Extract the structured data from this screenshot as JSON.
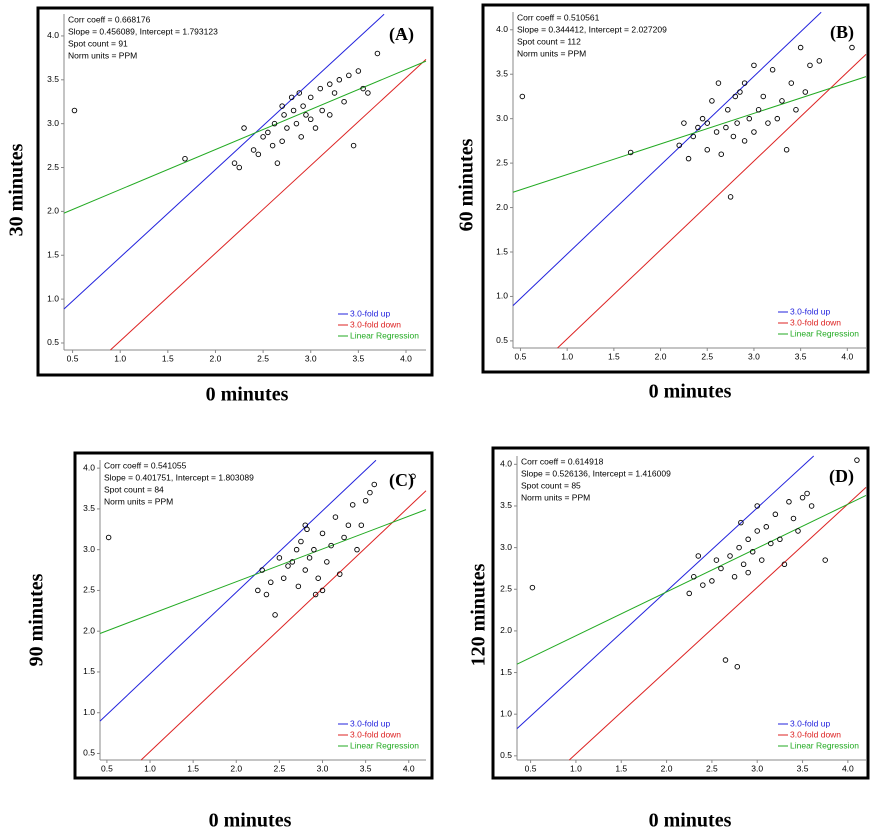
{
  "chart_data": [
    {
      "type": "scatter",
      "label": "(A)",
      "xlabel": "0 minutes",
      "ylabel": "30 minutes",
      "annotations": [
        "Corr coeff = 0.668176",
        "Slope = 0.456089, Intercept = 1.793123",
        "Spot count = 91",
        "Norm units = PPM"
      ],
      "xlim": [
        0.41,
        4.21
      ],
      "ylim": [
        0.42,
        4.25
      ],
      "xticks": [
        0.5,
        {
          "value": 1,
          "label": "1.0"
        },
        1.5,
        {
          "value": 2,
          "label": "2.0"
        },
        2.5,
        {
          "value": 3,
          "label": "3.0"
        },
        3.5,
        {
          "value": 4,
          "label": "4.0"
        }
      ],
      "yticks": [
        0.5,
        {
          "value": 1,
          "label": "1.0"
        },
        1.5,
        {
          "value": 2,
          "label": "2.0"
        },
        2.5,
        {
          "value": 3,
          "label": "3.0"
        },
        3.5,
        {
          "value": 4,
          "label": "4.0"
        }
      ],
      "color": "#000000",
      "x": [
        0.52,
        1.68,
        2.2,
        2.25,
        2.3,
        2.4,
        2.45,
        2.5,
        2.55,
        2.6,
        2.62,
        2.65,
        2.7,
        2.72,
        2.75,
        2.8,
        2.82,
        2.85,
        2.88,
        2.9,
        2.92,
        2.95,
        3.0,
        3.0,
        3.05,
        3.1,
        3.12,
        3.2,
        3.25,
        3.3,
        3.35,
        3.4,
        3.45,
        3.5,
        3.55,
        3.6,
        3.7,
        3.95,
        3.2,
        2.7
      ],
      "values": [
        3.15,
        2.6,
        2.55,
        2.5,
        2.95,
        2.7,
        2.65,
        2.85,
        2.9,
        2.75,
        3.0,
        2.55,
        2.8,
        3.1,
        2.95,
        3.3,
        3.15,
        3.0,
        3.35,
        2.85,
        3.2,
        3.1,
        3.05,
        3.3,
        2.95,
        3.4,
        3.15,
        3.1,
        3.35,
        3.5,
        3.25,
        3.55,
        2.75,
        3.6,
        3.4,
        3.35,
        3.8,
        4.05,
        3.45,
        3.2
      ],
      "series": [
        {
          "name": "3.0-fold up",
          "color": "#2222dd",
          "x": [
            0.41,
            3.77
          ],
          "values": [
            0.887,
            4.247
          ]
        },
        {
          "name": "3.0-fold down",
          "color": "#dd2222",
          "x": [
            0.897,
            4.21
          ],
          "values": [
            0.42,
            3.733
          ]
        },
        {
          "name": "Linear Regression",
          "color": "#22aa22",
          "x": [
            0.41,
            4.21
          ],
          "values": [
            1.98,
            3.713
          ]
        }
      ]
    },
    {
      "type": "scatter",
      "label": "(B)",
      "xlabel": "0 minutes",
      "ylabel": "60 minutes",
      "annotations": [
        "Corr coeff = 0.510561",
        "Slope = 0.344412, Intercept = 2.027209",
        "Spot count = 112",
        "Norm units = PPM"
      ],
      "xlim": [
        0.42,
        4.2
      ],
      "ylim": [
        0.42,
        4.2
      ],
      "xticks": [
        0.5,
        {
          "value": 1,
          "label": "1.0"
        },
        1.5,
        {
          "value": 2,
          "label": "2.0"
        },
        2.5,
        {
          "value": 3,
          "label": "3.0"
        },
        3.5,
        {
          "value": 4,
          "label": "4.0"
        }
      ],
      "yticks": [
        0.5,
        {
          "value": 1,
          "label": "1.0"
        },
        1.5,
        {
          "value": 2,
          "label": "2.0"
        },
        2.5,
        {
          "value": 3,
          "label": "3.0"
        },
        3.5,
        {
          "value": 4,
          "label": "4.0"
        }
      ],
      "color": "#000000",
      "x": [
        0.52,
        1.68,
        2.2,
        2.25,
        2.3,
        2.35,
        2.4,
        2.45,
        2.5,
        2.55,
        2.6,
        2.62,
        2.65,
        2.7,
        2.72,
        2.75,
        2.78,
        2.8,
        2.82,
        2.85,
        2.9,
        2.95,
        3.0,
        3.05,
        3.1,
        3.15,
        3.2,
        3.25,
        3.3,
        3.35,
        3.4,
        3.45,
        3.5,
        3.55,
        3.6,
        3.7,
        4.05,
        2.5,
        2.9,
        3.0
      ],
      "values": [
        3.25,
        2.62,
        2.7,
        2.95,
        2.55,
        2.8,
        2.9,
        3.0,
        2.65,
        3.2,
        2.85,
        3.4,
        2.6,
        2.9,
        3.1,
        2.12,
        2.8,
        3.25,
        2.95,
        3.3,
        2.75,
        3.0,
        2.85,
        3.1,
        3.25,
        2.95,
        3.55,
        3.0,
        3.2,
        2.65,
        3.4,
        3.1,
        3.8,
        3.3,
        3.6,
        3.65,
        3.8,
        2.95,
        3.4,
        3.6
      ],
      "series": [
        {
          "name": "3.0-fold up",
          "color": "#2222dd",
          "x": [
            0.42,
            3.72
          ],
          "values": [
            0.897,
            4.197
          ]
        },
        {
          "name": "3.0-fold down",
          "color": "#dd2222",
          "x": [
            0.897,
            4.2
          ],
          "values": [
            0.42,
            3.723
          ]
        },
        {
          "name": "Linear Regression",
          "color": "#22aa22",
          "x": [
            0.42,
            4.2
          ],
          "values": [
            2.172,
            3.473
          ]
        }
      ]
    },
    {
      "type": "scatter",
      "label": "(C)",
      "xlabel": "0 minutes",
      "ylabel": "90 minutes",
      "annotations": [
        "Corr coeff = 0.541055",
        "Slope = 0.401751, Intercept = 1.803089",
        "Spot count = 84",
        "Norm units = PPM"
      ],
      "xlim": [
        0.42,
        4.2
      ],
      "ylim": [
        0.42,
        4.1
      ],
      "xticks": [
        0.5,
        {
          "value": 1,
          "label": "1.0"
        },
        1.5,
        {
          "value": 2,
          "label": "2.0"
        },
        2.5,
        {
          "value": 3,
          "label": "3.0"
        },
        3.5,
        {
          "value": 4,
          "label": "4.0"
        }
      ],
      "yticks": [
        0.5,
        {
          "value": 1,
          "label": "1.0"
        },
        1.5,
        {
          "value": 2,
          "label": "2.0"
        },
        2.5,
        {
          "value": 3,
          "label": "3.0"
        },
        3.5,
        {
          "value": 4,
          "label": "4.0"
        }
      ],
      "color": "#000000",
      "x": [
        0.52,
        2.25,
        2.3,
        2.35,
        2.4,
        2.45,
        2.5,
        2.55,
        2.6,
        2.65,
        2.7,
        2.72,
        2.75,
        2.8,
        2.82,
        2.85,
        2.9,
        2.92,
        2.95,
        3.0,
        3.05,
        3.1,
        3.15,
        3.2,
        3.25,
        3.3,
        3.35,
        3.4,
        3.45,
        3.5,
        3.55,
        3.6,
        4.05,
        2.8,
        3.0
      ],
      "values": [
        3.15,
        2.5,
        2.75,
        2.45,
        2.6,
        2.2,
        2.9,
        2.65,
        2.8,
        2.85,
        3.0,
        2.55,
        3.1,
        2.75,
        3.25,
        2.9,
        3.0,
        2.45,
        2.65,
        3.2,
        2.85,
        3.05,
        3.4,
        2.7,
        3.15,
        3.3,
        3.55,
        3.0,
        3.3,
        3.6,
        3.7,
        3.8,
        3.9,
        3.3,
        2.5
      ],
      "series": [
        {
          "name": "3.0-fold up",
          "color": "#2222dd",
          "x": [
            0.42,
            3.62
          ],
          "values": [
            0.897,
            4.097
          ]
        },
        {
          "name": "3.0-fold down",
          "color": "#dd2222",
          "x": [
            0.897,
            4.2
          ],
          "values": [
            0.42,
            3.723
          ]
        },
        {
          "name": "Linear Regression",
          "color": "#22aa22",
          "x": [
            0.42,
            4.2
          ],
          "values": [
            1.972,
            3.491
          ]
        }
      ]
    },
    {
      "type": "scatter",
      "label": "(D)",
      "xlabel": "0 minutes",
      "ylabel": "120 minutes",
      "annotations": [
        "Corr coeff = 0.614918",
        "Slope = 0.526136, Intercept = 1.416009",
        "Spot count = 85",
        "Norm units = PPM"
      ],
      "xlim": [
        0.35,
        4.2
      ],
      "ylim": [
        0.45,
        4.1
      ],
      "xticks": [
        0.5,
        {
          "value": 1,
          "label": "1.0"
        },
        1.5,
        {
          "value": 2,
          "label": "2.0"
        },
        2.5,
        {
          "value": 3,
          "label": "3.0"
        },
        3.5,
        {
          "value": 4,
          "label": "4.0"
        }
      ],
      "yticks": [
        0.5,
        {
          "value": 1,
          "label": "1.0"
        },
        1.5,
        {
          "value": 2,
          "label": "2.0"
        },
        2.5,
        {
          "value": 3,
          "label": "3.0"
        },
        3.5,
        {
          "value": 4,
          "label": "4.0"
        }
      ],
      "color": "#000000",
      "x": [
        0.52,
        2.25,
        2.3,
        2.35,
        2.4,
        2.5,
        2.55,
        2.6,
        2.65,
        2.7,
        2.75,
        2.78,
        2.8,
        2.82,
        2.85,
        2.9,
        2.95,
        3.0,
        3.05,
        3.1,
        3.15,
        3.2,
        3.25,
        3.3,
        3.35,
        3.4,
        3.45,
        3.5,
        3.55,
        3.6,
        3.75,
        4.1,
        2.9,
        3.0
      ],
      "values": [
        2.52,
        2.45,
        2.65,
        2.9,
        2.55,
        2.6,
        2.85,
        2.75,
        1.65,
        2.9,
        2.65,
        1.57,
        3.0,
        3.3,
        2.8,
        3.1,
        2.95,
        3.2,
        2.85,
        3.25,
        3.05,
        3.4,
        3.1,
        2.8,
        3.55,
        3.35,
        3.2,
        3.6,
        3.65,
        3.5,
        2.85,
        4.05,
        2.7,
        3.5
      ],
      "series": [
        {
          "name": "3.0-fold up",
          "color": "#2222dd",
          "x": [
            0.35,
            3.623
          ],
          "values": [
            0.827,
            4.1
          ]
        },
        {
          "name": "3.0-fold down",
          "color": "#dd2222",
          "x": [
            0.927,
            4.2
          ],
          "values": [
            0.45,
            3.723
          ]
        },
        {
          "name": "Linear Regression",
          "color": "#22aa22",
          "x": [
            0.35,
            4.2
          ],
          "values": [
            1.6,
            3.626
          ]
        }
      ]
    }
  ]
}
